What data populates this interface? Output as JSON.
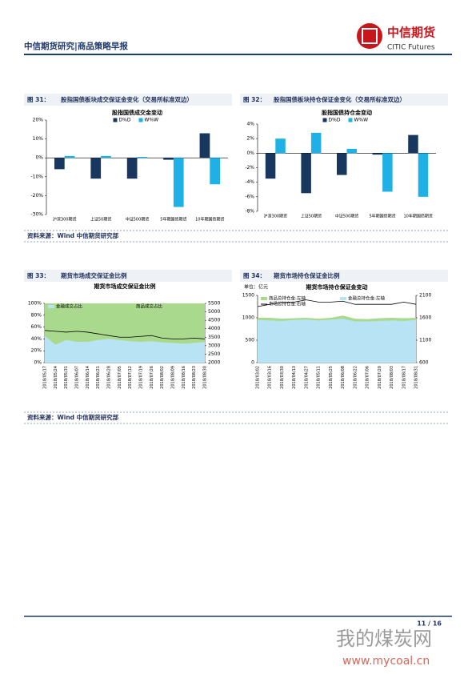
{
  "header": {
    "title": "中信期货研究|商品策略早报",
    "logo_cn": "中信期货",
    "logo_en": "CITIC Futures"
  },
  "figures": [
    {
      "label": "图 31：",
      "caption": "股指国债板块成交保证金变化（交易所标准双边）"
    },
    {
      "label": "图 32：",
      "caption": "股指国债板块持仓保证金变化（交易所标准双边）"
    },
    {
      "label": "图 33：",
      "caption": "期货市场成交保证金比例"
    },
    {
      "label": "图 34：",
      "caption": "期货市场持仓保证金比例"
    }
  ],
  "sources": [
    "资料来源：Wind  中信期货研究部",
    "资料来源：Wind  中信期货研究部"
  ],
  "chart_data": [
    {
      "type": "bar",
      "title": "股指国债成交金变动",
      "categories": [
        "沪深300期货",
        "上证50期货",
        "中证500期货",
        "5年期国债期货",
        "10年期国债期货"
      ],
      "series": [
        {
          "name": "D%D",
          "color": "#17375e",
          "values": [
            -6,
            -11,
            -11,
            -1,
            13
          ]
        },
        {
          "name": "W%W",
          "color": "#1fb0e6",
          "values": [
            1,
            1,
            0.5,
            -26,
            -14
          ]
        }
      ],
      "ylim": [
        -30,
        20
      ],
      "yticks": [
        {
          "value": -30,
          "label": "-30%"
        },
        {
          "value": -20,
          "label": "-20%"
        },
        {
          "value": -10,
          "label": "-10%"
        },
        {
          "value": 0,
          "label": "0%"
        },
        {
          "value": 10,
          "label": "10%"
        },
        {
          "value": 20,
          "label": "20%"
        }
      ]
    },
    {
      "type": "bar",
      "title": "股指国债持仓金变动",
      "categories": [
        "沪深300期货",
        "上证50期货",
        "中证500期货",
        "5年期国债期货",
        "10年期国债期货"
      ],
      "series": [
        {
          "name": "D%D",
          "color": "#17375e",
          "values": [
            -3.5,
            -5.5,
            -3,
            -0.2,
            2.5
          ]
        },
        {
          "name": "W%W",
          "color": "#1fb0e6",
          "values": [
            2,
            2.8,
            0.6,
            -5.3,
            -6
          ]
        }
      ],
      "ylim": [
        -8,
        4
      ],
      "yticks": [
        {
          "value": -8,
          "label": "-8%"
        },
        {
          "value": -6,
          "label": "-6%"
        },
        {
          "value": -4,
          "label": "-4%"
        },
        {
          "value": -2,
          "label": "-2%"
        },
        {
          "value": 0,
          "label": "0%"
        },
        {
          "value": 2,
          "label": "2%"
        },
        {
          "value": 4,
          "label": "4%"
        }
      ]
    },
    {
      "type": "area",
      "title": "期货市场成交保证金比例",
      "stacked": true,
      "categories": [
        "2018/05/17",
        "2018/05/24",
        "2018/05/31",
        "2018/06/07",
        "2018/06/14",
        "2018/06/21",
        "2018/06/28",
        "2018/07/05",
        "2018/07/12",
        "2018/07/19",
        "2018/07/26",
        "2018/08/02",
        "2018/08/09",
        "2018/08/16",
        "2018/08/23",
        "2018/08/30"
      ],
      "series": [
        {
          "name": "金融成交占比",
          "color": "#b7e3f5",
          "values": [
            45,
            30,
            38,
            35,
            35,
            38,
            40,
            38,
            36,
            35,
            36,
            34,
            33,
            32,
            33,
            35
          ]
        },
        {
          "name": "商品成交占比",
          "color": "#a9d98c",
          "values": [
            55,
            70,
            62,
            65,
            65,
            62,
            60,
            62,
            64,
            65,
            64,
            66,
            67,
            68,
            67,
            65
          ]
        },
        {
          "color": "#000000",
          "type": "line",
          "axis": "y2",
          "values": [
            3900,
            3850,
            3800,
            3850,
            3800,
            3700,
            3600,
            3500,
            3500,
            3550,
            3600,
            3450,
            3400,
            3400,
            3450,
            3400
          ]
        }
      ],
      "ylim": [
        0,
        100
      ],
      "yticks": [
        {
          "value": 0,
          "label": "0%"
        },
        {
          "value": 20,
          "label": "20%"
        },
        {
          "value": 40,
          "label": "40%"
        },
        {
          "value": 60,
          "label": "60%"
        },
        {
          "value": 80,
          "label": "80%"
        },
        {
          "value": 100,
          "label": "100%"
        }
      ],
      "y2lim": [
        2000,
        5500
      ],
      "y2ticks": [
        2000,
        2500,
        3000,
        3500,
        4000,
        4500,
        5000,
        5500
      ]
    },
    {
      "type": "area",
      "title": "期货市场持仓保证金变动",
      "unit": "单位：亿元",
      "stacked": false,
      "categories": [
        "2018/03/02",
        "2018/03/16",
        "2018/03/30",
        "2018/04/13",
        "2018/04/27",
        "2018/05/11",
        "2018/05/25",
        "2018/06/08",
        "2018/06/22",
        "2018/07/06",
        "2018/07/20",
        "2018/08/03",
        "2018/08/17",
        "2018/08/31"
      ],
      "series": [
        {
          "name": "商品总持仓金:左轴",
          "color": "#a9d98c",
          "values": [
            1000,
            1000,
            980,
            990,
            1000,
            980,
            1000,
            1050,
            980,
            970,
            990,
            1000,
            990,
            1000
          ]
        },
        {
          "name": "金融总持仓金:左轴",
          "color": "#b7e3f5",
          "values": [
            950,
            940,
            930,
            950,
            960,
            940,
            960,
            980,
            920,
            920,
            930,
            940,
            930,
            950
          ]
        },
        {
          "name": "市场总持仓金:右轴",
          "color": "#000000",
          "type": "line",
          "axis": "y2",
          "values": [
            1850,
            1900,
            1950,
            1950,
            2000,
            1950,
            1950,
            1970,
            1900,
            1900,
            1900,
            1900,
            1950,
            1900
          ]
        }
      ],
      "ylim": [
        0,
        1500
      ],
      "yticks": [
        0,
        500,
        1000,
        1500
      ],
      "y2lim": [
        600,
        2100
      ],
      "y2ticks": [
        600,
        1100,
        1600,
        2100
      ]
    }
  ],
  "footer": {
    "page": "11 / 16"
  },
  "watermark": {
    "text": "我的煤炭网",
    "url": "www.mycoal.cn"
  }
}
